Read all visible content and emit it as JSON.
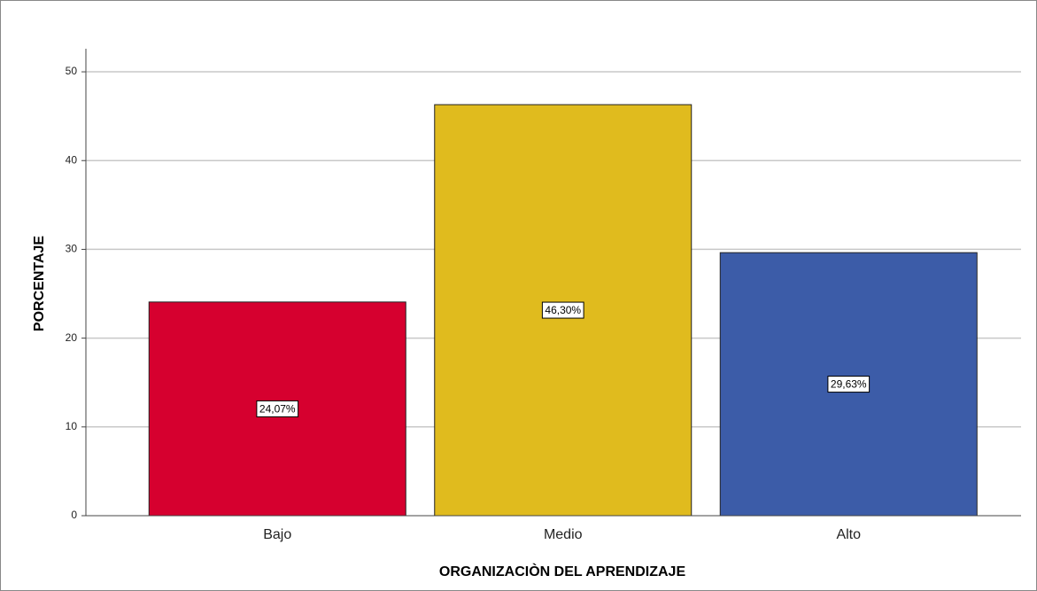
{
  "chart_data": {
    "type": "bar",
    "xlabel": "ORGANIZACIÒN DEL APRENDIZAJE",
    "ylabel": "PORCENTAJE",
    "categories": [
      "Bajo",
      "Medio",
      "Alto"
    ],
    "values": [
      24.07,
      46.3,
      29.63
    ],
    "value_labels": [
      "24,07%",
      "46,30%",
      "29,63%"
    ],
    "colors": [
      "#d6002f",
      "#e0bb1e",
      "#3c5ca8"
    ],
    "ylim": [
      0,
      52.6
    ],
    "yticks": [
      0,
      10,
      20,
      30,
      40,
      50
    ],
    "grid": true
  }
}
